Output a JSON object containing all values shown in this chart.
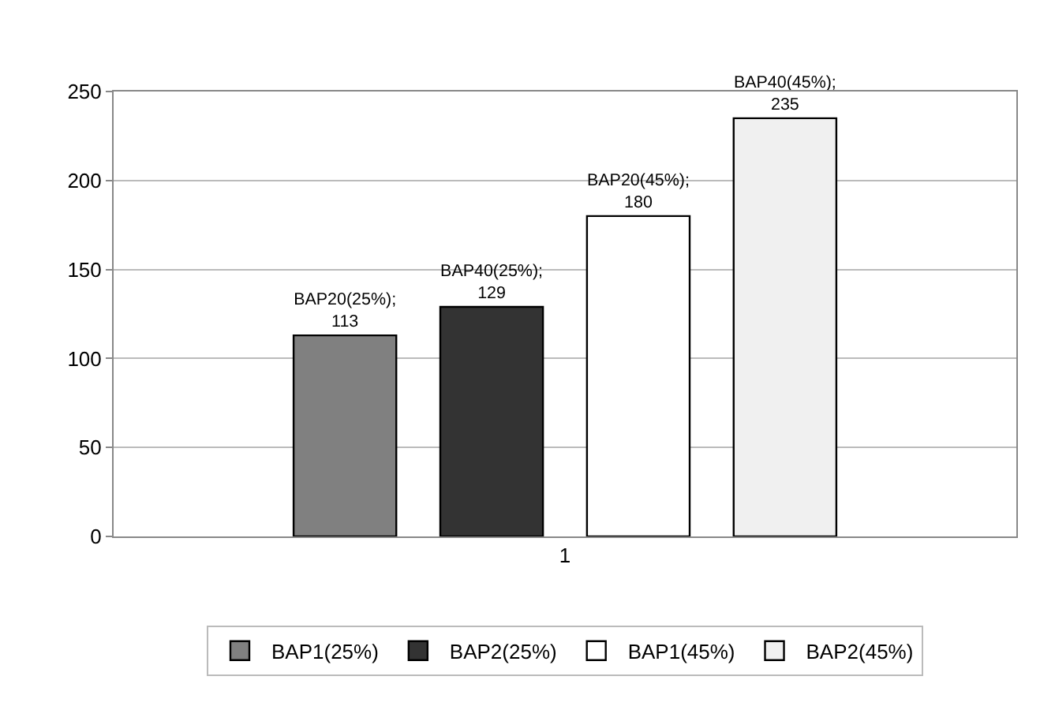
{
  "chart_data": {
    "type": "bar",
    "categories": [
      "1"
    ],
    "series": [
      {
        "name": "BAP1(25%)",
        "color": "#808080",
        "values": [
          113
        ],
        "value_labels": [
          "BAP20(25%);\n113"
        ]
      },
      {
        "name": "BAP2(25%)",
        "color": "#333333",
        "values": [
          129
        ],
        "value_labels": [
          "BAP40(25%);\n129"
        ]
      },
      {
        "name": "BAP1(45%)",
        "color": "#ffffff",
        "values": [
          180
        ],
        "value_labels": [
          "BAP20(45%);\n180"
        ]
      },
      {
        "name": "BAP2(45%)",
        "color": "#f0f0f0",
        "values": [
          235
        ],
        "value_labels": [
          "BAP40(45%);\n235"
        ]
      }
    ],
    "ylim": [
      0,
      250
    ],
    "yticks": [
      0,
      50,
      100,
      150,
      200,
      250
    ],
    "grid": "y",
    "legend": "bottom"
  }
}
